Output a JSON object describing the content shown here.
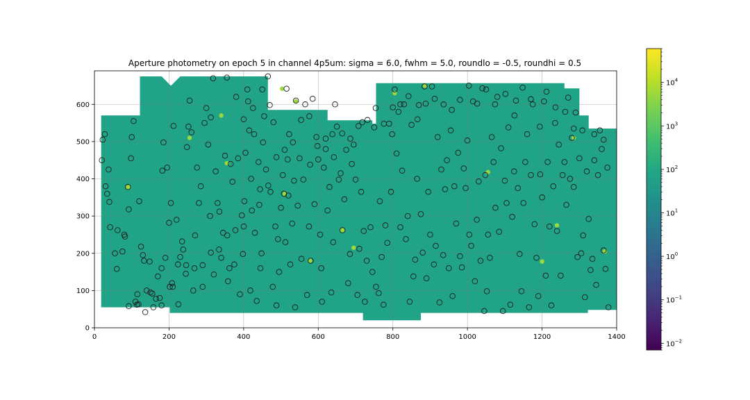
{
  "chart_data": {
    "type": "scatter",
    "title": "Aperture photometry on epoch 5 in channel 4p5um: sigma = 6.0, fwhm = 5.0, roundlo = -0.5, roundhi = 0.5",
    "xlabel": "",
    "ylabel": "",
    "xlim": [
      0,
      1400
    ],
    "ylim": [
      0,
      690
    ],
    "x_ticks": [
      0,
      200,
      400,
      600,
      800,
      1000,
      1200,
      1400
    ],
    "y_ticks": [
      0,
      100,
      200,
      300,
      400,
      500,
      600
    ],
    "grid": true,
    "image_background": {
      "colormap": "viridis",
      "scale": "log",
      "background_level_color": "#20a386",
      "footprint_polygons": [
        [
          [
            18,
            570
          ],
          [
            122,
            570
          ],
          [
            122,
            675
          ],
          [
            465,
            675
          ],
          [
            465,
            585
          ],
          [
            625,
            585
          ],
          [
            625,
            557
          ],
          [
            745,
            557
          ],
          [
            745,
            548
          ],
          [
            755,
            548
          ],
          [
            755,
            657
          ],
          [
            1260,
            657
          ],
          [
            1260,
            643
          ],
          [
            1300,
            643
          ],
          [
            1300,
            570
          ],
          [
            1325,
            570
          ],
          [
            1325,
            535
          ],
          [
            1400,
            535
          ],
          [
            1400,
            48
          ],
          [
            1323,
            48
          ],
          [
            1323,
            40
          ],
          [
            875,
            40
          ],
          [
            875,
            20
          ],
          [
            720,
            20
          ],
          [
            720,
            40
          ],
          [
            202,
            40
          ],
          [
            202,
            55
          ],
          [
            18,
            55
          ]
        ]
      ]
    },
    "colorbar": {
      "scale": "log",
      "range": [
        0.007,
        60000
      ],
      "tick_values": [
        0.01,
        0.1,
        1,
        10,
        100,
        1000,
        10000
      ],
      "tick_labels": [
        {
          "base": "10",
          "exp": "−2"
        },
        {
          "base": "10",
          "exp": "−1"
        },
        {
          "base": "10",
          "exp": "0"
        },
        {
          "base": "10",
          "exp": "1"
        },
        {
          "base": "10",
          "exp": "2"
        },
        {
          "base": "10",
          "exp": "3"
        },
        {
          "base": "10",
          "exp": "4"
        }
      ]
    },
    "apertures": [
      [
        20,
        450
      ],
      [
        22,
        505
      ],
      [
        28,
        520
      ],
      [
        30,
        380
      ],
      [
        34,
        360
      ],
      [
        38,
        425
      ],
      [
        40,
        338
      ],
      [
        42,
        270
      ],
      [
        55,
        200
      ],
      [
        60,
        158
      ],
      [
        62,
        262
      ],
      [
        75,
        205
      ],
      [
        80,
        250
      ],
      [
        82,
        245
      ],
      [
        90,
        378
      ],
      [
        92,
        318
      ],
      [
        98,
        455
      ],
      [
        100,
        512
      ],
      [
        105,
        555
      ],
      [
        110,
        70
      ],
      [
        115,
        90
      ],
      [
        118,
        63
      ],
      [
        120,
        340
      ],
      [
        125,
        218
      ],
      [
        130,
        195
      ],
      [
        133,
        180
      ],
      [
        140,
        100
      ],
      [
        148,
        178
      ],
      [
        150,
        95
      ],
      [
        155,
        92
      ],
      [
        165,
        78
      ],
      [
        170,
        138
      ],
      [
        175,
        80
      ],
      [
        180,
        160
      ],
      [
        182,
        422
      ],
      [
        185,
        498
      ],
      [
        190,
        188
      ],
      [
        195,
        430
      ],
      [
        200,
        282
      ],
      [
        205,
        335
      ],
      [
        208,
        120
      ],
      [
        210,
        110
      ],
      [
        212,
        542
      ],
      [
        220,
        290
      ],
      [
        225,
        63
      ],
      [
        230,
        190
      ],
      [
        235,
        232
      ],
      [
        238,
        210
      ],
      [
        245,
        145
      ],
      [
        248,
        485
      ],
      [
        252,
        540
      ],
      [
        255,
        610
      ],
      [
        260,
        525
      ],
      [
        265,
        100
      ],
      [
        270,
        248
      ],
      [
        275,
        430
      ],
      [
        280,
        335
      ],
      [
        285,
        380
      ],
      [
        290,
        110
      ],
      [
        295,
        550
      ],
      [
        300,
        590
      ],
      [
        305,
        492
      ],
      [
        310,
        300
      ],
      [
        312,
        565
      ],
      [
        318,
        670
      ],
      [
        320,
        143
      ],
      [
        325,
        420
      ],
      [
        330,
        335
      ],
      [
        335,
        312
      ],
      [
        340,
        188
      ],
      [
        345,
        255
      ],
      [
        350,
        462
      ],
      [
        355,
        672
      ],
      [
        358,
        125
      ],
      [
        362,
        160
      ],
      [
        365,
        440
      ],
      [
        370,
        392
      ],
      [
        375,
        170
      ],
      [
        380,
        620
      ],
      [
        385,
        455
      ],
      [
        390,
        90
      ],
      [
        395,
        302
      ],
      [
        398,
        198
      ],
      [
        400,
        560
      ],
      [
        402,
        340
      ],
      [
        405,
        470
      ],
      [
        410,
        640
      ],
      [
        412,
        608
      ],
      [
        415,
        530
      ],
      [
        418,
        100
      ],
      [
        420,
        400
      ],
      [
        425,
        590
      ],
      [
        428,
        520
      ],
      [
        430,
        255
      ],
      [
        435,
        72
      ],
      [
        440,
        445
      ],
      [
        442,
        330
      ],
      [
        445,
        160
      ],
      [
        448,
        200
      ],
      [
        450,
        640
      ],
      [
        452,
        498
      ],
      [
        455,
        568
      ],
      [
        460,
        425
      ],
      [
        465,
        675
      ],
      [
        470,
        598
      ],
      [
        472,
        365
      ],
      [
        478,
        110
      ],
      [
        480,
        552
      ],
      [
        485,
        272
      ],
      [
        488,
        60
      ],
      [
        492,
        238
      ],
      [
        495,
        150
      ],
      [
        500,
        322
      ],
      [
        505,
        410
      ],
      [
        508,
        360
      ],
      [
        512,
        230
      ],
      [
        515,
        642
      ],
      [
        518,
        452
      ],
      [
        520,
        355
      ],
      [
        522,
        520
      ],
      [
        525,
        170
      ],
      [
        530,
        280
      ],
      [
        535,
        395
      ],
      [
        538,
        55
      ],
      [
        540,
        610
      ],
      [
        545,
        328
      ],
      [
        550,
        455
      ],
      [
        555,
        185
      ],
      [
        560,
        398
      ],
      [
        565,
        600
      ],
      [
        570,
        88
      ],
      [
        575,
        272
      ],
      [
        578,
        438
      ],
      [
        580,
        180
      ],
      [
        585,
        615
      ],
      [
        590,
        332
      ],
      [
        595,
        512
      ],
      [
        600,
        452
      ],
      [
        605,
        250
      ],
      [
        608,
        160
      ],
      [
        610,
        70
      ],
      [
        615,
        430
      ],
      [
        620,
        480
      ],
      [
        625,
        315
      ],
      [
        630,
        378
      ],
      [
        635,
        95
      ],
      [
        638,
        520
      ],
      [
        640,
        230
      ],
      [
        645,
        600
      ],
      [
        650,
        540
      ],
      [
        655,
        398
      ],
      [
        660,
        415
      ],
      [
        665,
        262
      ],
      [
        670,
        345
      ],
      [
        675,
        478
      ],
      [
        680,
        120
      ],
      [
        685,
        198
      ],
      [
        690,
        440
      ],
      [
        695,
        492
      ],
      [
        700,
        398
      ],
      [
        705,
        88
      ],
      [
        710,
        212
      ],
      [
        715,
        365
      ],
      [
        718,
        552
      ],
      [
        722,
        260
      ],
      [
        725,
        70
      ],
      [
        730,
        180
      ],
      [
        740,
        270
      ],
      [
        745,
        150
      ],
      [
        750,
        538
      ],
      [
        755,
        110
      ],
      [
        762,
        93
      ],
      [
        765,
        340
      ],
      [
        770,
        190
      ],
      [
        775,
        62
      ],
      [
        780,
        275
      ],
      [
        785,
        228
      ],
      [
        790,
        548
      ],
      [
        795,
        365
      ],
      [
        800,
        592
      ],
      [
        805,
        640
      ],
      [
        810,
        468
      ],
      [
        815,
        580
      ],
      [
        820,
        270
      ],
      [
        825,
        422
      ],
      [
        830,
        600
      ],
      [
        835,
        238
      ],
      [
        840,
        300
      ],
      [
        845,
        70
      ],
      [
        850,
        545
      ],
      [
        855,
        138
      ],
      [
        860,
        183
      ],
      [
        865,
        400
      ],
      [
        870,
        598
      ],
      [
        875,
        305
      ],
      [
        880,
        202
      ],
      [
        885,
        648
      ],
      [
        890,
        133
      ],
      [
        895,
        365
      ],
      [
        900,
        250
      ],
      [
        905,
        648
      ],
      [
        910,
        170
      ],
      [
        915,
        220
      ],
      [
        920,
        512
      ],
      [
        925,
        68
      ],
      [
        930,
        425
      ],
      [
        935,
        195
      ],
      [
        940,
        372
      ],
      [
        945,
        450
      ],
      [
        950,
        160
      ],
      [
        955,
        530
      ],
      [
        960,
        85
      ],
      [
        965,
        380
      ],
      [
        970,
        280
      ],
      [
        975,
        470
      ],
      [
        980,
        192
      ],
      [
        985,
        162
      ],
      [
        990,
        428
      ],
      [
        995,
        375
      ],
      [
        1000,
        503
      ],
      [
        1005,
        250
      ],
      [
        1010,
        220
      ],
      [
        1015,
        608
      ],
      [
        1020,
        125
      ],
      [
        1025,
        290
      ],
      [
        1030,
        393
      ],
      [
        1035,
        180
      ],
      [
        1040,
        643
      ],
      [
        1045,
        45
      ],
      [
        1048,
        410
      ],
      [
        1052,
        98
      ],
      [
        1055,
        250
      ],
      [
        1060,
        188
      ],
      [
        1065,
        512
      ],
      [
        1070,
        445
      ],
      [
        1075,
        322
      ],
      [
        1080,
        620
      ],
      [
        1085,
        258
      ],
      [
        1090,
        482
      ],
      [
        1095,
        45
      ],
      [
        1100,
        395
      ],
      [
        1105,
        335
      ],
      [
        1110,
        538
      ],
      [
        1115,
        62
      ],
      [
        1120,
        298
      ],
      [
        1125,
        420
      ],
      [
        1130,
        610
      ],
      [
        1135,
        375
      ],
      [
        1140,
        198
      ],
      [
        1145,
        98
      ],
      [
        1150,
        335
      ],
      [
        1155,
        445
      ],
      [
        1160,
        520
      ],
      [
        1165,
        55
      ],
      [
        1170,
        410
      ],
      [
        1175,
        600
      ],
      [
        1180,
        278
      ],
      [
        1185,
        188
      ],
      [
        1190,
        85
      ],
      [
        1195,
        412
      ],
      [
        1200,
        350
      ],
      [
        1205,
        608
      ],
      [
        1210,
        140
      ],
      [
        1215,
        445
      ],
      [
        1220,
        272
      ],
      [
        1225,
        60
      ],
      [
        1230,
        380
      ],
      [
        1235,
        550
      ],
      [
        1240,
        260
      ],
      [
        1245,
        492
      ],
      [
        1250,
        140
      ],
      [
        1255,
        410
      ],
      [
        1260,
        445
      ],
      [
        1265,
        330
      ],
      [
        1270,
        618
      ],
      [
        1275,
        400
      ],
      [
        1280,
        510
      ],
      [
        1285,
        378
      ],
      [
        1290,
        578
      ],
      [
        1295,
        190
      ],
      [
        1300,
        455
      ],
      [
        1305,
        200
      ],
      [
        1310,
        248
      ],
      [
        1315,
        82
      ],
      [
        1320,
        420
      ],
      [
        1325,
        292
      ],
      [
        1330,
        155
      ],
      [
        1335,
        185
      ],
      [
        1340,
        450
      ],
      [
        1345,
        115
      ],
      [
        1350,
        410
      ],
      [
        1355,
        530
      ],
      [
        1360,
        480
      ],
      [
        1365,
        208
      ],
      [
        1370,
        158
      ],
      [
        1375,
        430
      ],
      [
        1378,
        55
      ],
      [
        1365,
        505
      ],
      [
        1340,
        520
      ],
      [
        1308,
        530
      ],
      [
        1285,
        535
      ],
      [
        1262,
        580
      ],
      [
        1236,
        592
      ],
      [
        1212,
        634
      ],
      [
        1194,
        540
      ],
      [
        1170,
        614
      ],
      [
        1148,
        645
      ],
      [
        1126,
        570
      ],
      [
        1102,
        628
      ],
      [
        1074,
        600
      ],
      [
        1050,
        640
      ],
      [
        1026,
        602
      ],
      [
        1004,
        650
      ],
      [
        980,
        612
      ],
      [
        958,
        585
      ],
      [
        936,
        600
      ],
      [
        912,
        615
      ],
      [
        888,
        602
      ],
      [
        866,
        560
      ],
      [
        842,
        622
      ],
      [
        820,
        600
      ],
      [
        798,
        520
      ],
      [
        776,
        548
      ],
      [
        754,
        590
      ],
      [
        732,
        558
      ],
      [
        708,
        542
      ],
      [
        686,
        508
      ],
      [
        664,
        522
      ],
      [
        642,
        458
      ],
      [
        620,
        508
      ],
      [
        598,
        488
      ],
      [
        576,
        568
      ],
      [
        554,
        558
      ],
      [
        532,
        498
      ],
      [
        510,
        478
      ],
      [
        488,
        458
      ],
      [
        466,
        382
      ],
      [
        444,
        372
      ],
      [
        422,
        315
      ],
      [
        400,
        272
      ],
      [
        378,
        262
      ],
      [
        356,
        248
      ],
      [
        334,
        210
      ],
      [
        312,
        202
      ],
      [
        290,
        168
      ],
      [
        268,
        160
      ],
      [
        246,
        168
      ],
      [
        224,
        170
      ],
      [
        202,
        110
      ],
      [
        180,
        60
      ],
      [
        158,
        55
      ],
      [
        136,
        42
      ],
      [
        114,
        62
      ],
      [
        92,
        58
      ]
    ],
    "bright_apertures": [
      [
        92,
        378
      ],
      [
        90,
        378
      ],
      [
        255,
        510
      ],
      [
        340,
        570
      ],
      [
        355,
        442
      ],
      [
        503,
        642
      ],
      [
        510,
        360
      ],
      [
        540,
        608
      ],
      [
        578,
        180
      ],
      [
        665,
        262
      ],
      [
        695,
        215
      ],
      [
        805,
        630
      ],
      [
        886,
        650
      ],
      [
        1055,
        418
      ],
      [
        1200,
        178
      ],
      [
        1240,
        275
      ],
      [
        1285,
        510
      ],
      [
        1368,
        205
      ]
    ]
  }
}
